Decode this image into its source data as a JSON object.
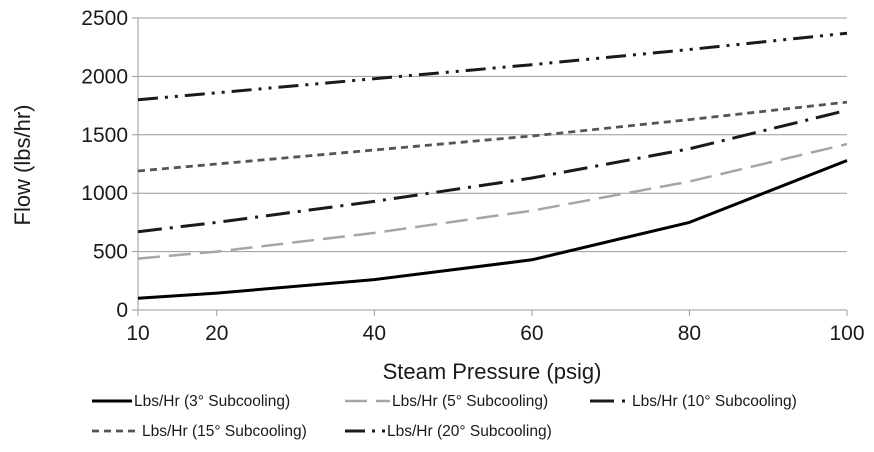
{
  "chart_data": {
    "type": "line",
    "title": "",
    "xlabel": "Steam Pressure (psig)",
    "ylabel": "Flow (lbs/hr)",
    "x": [
      10,
      20,
      40,
      60,
      80,
      100
    ],
    "xlim": [
      10,
      100
    ],
    "ylim": [
      0,
      2500
    ],
    "x_ticks": [
      "10",
      "20",
      "40",
      "60",
      "80",
      "100"
    ],
    "y_ticks": [
      "0",
      "500",
      "1000",
      "1500",
      "2000",
      "2500"
    ],
    "grid": "horizontal",
    "legend_position": "bottom",
    "series": [
      {
        "name": "Lbs/Hr (3° Subcooling)",
        "values": [
          100,
          145,
          260,
          430,
          750,
          1280
        ],
        "color": "#000000",
        "dash": "solid"
      },
      {
        "name": "Lbs/Hr (5° Subcooling)",
        "values": [
          440,
          500,
          660,
          850,
          1100,
          1420
        ],
        "color": "#a6a6a6",
        "dash": "long-dash"
      },
      {
        "name": "Lbs/Hr (10° Subcooling)",
        "values": [
          670,
          750,
          930,
          1130,
          1380,
          1710
        ],
        "color": "#1a1a1a",
        "dash": "long-dash-dot"
      },
      {
        "name": "Lbs/Hr (15° Subcooling)",
        "values": [
          1190,
          1250,
          1370,
          1490,
          1630,
          1780
        ],
        "color": "#555555",
        "dash": "short-dash"
      },
      {
        "name": "Lbs/Hr (20° Subcooling)",
        "values": [
          1800,
          1860,
          1980,
          2100,
          2230,
          2370
        ],
        "color": "#1a1a1a",
        "dash": "long-dash-dot-dot"
      }
    ]
  }
}
